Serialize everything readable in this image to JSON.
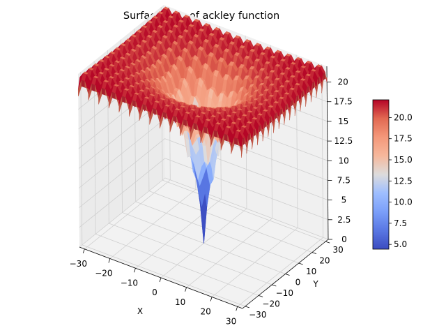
{
  "chart_data": {
    "type": "surface",
    "title": "Surface Map of ackley function",
    "function": "ackley",
    "xlabel": "X",
    "ylabel": "Y",
    "zlabel": "",
    "xlim": [
      -32,
      32
    ],
    "ylim": [
      -32,
      32
    ],
    "zlim": [
      0,
      22
    ],
    "x_ticks": [
      -30,
      -20,
      -10,
      0,
      10,
      20,
      30
    ],
    "y_ticks": [
      -30,
      -20,
      -10,
      0,
      10,
      20,
      30
    ],
    "z_ticks": [
      0,
      2.5,
      5,
      7.5,
      10,
      12.5,
      15,
      17.5,
      20
    ],
    "z_tick_labels": [
      "0",
      "2.5",
      "5",
      "7.5",
      "10",
      "12.5",
      "15",
      "17.5",
      "20"
    ],
    "colormap": "coolwarm",
    "colorbar": {
      "range": [
        4.44,
        22.1
      ],
      "ticks": [
        5,
        7.5,
        10,
        12.5,
        15,
        17.5,
        20
      ],
      "tick_labels": [
        "5.0",
        "7.5",
        "10.0",
        "12.5",
        "15.0",
        "17.5",
        "20.0"
      ]
    },
    "grid": true
  }
}
